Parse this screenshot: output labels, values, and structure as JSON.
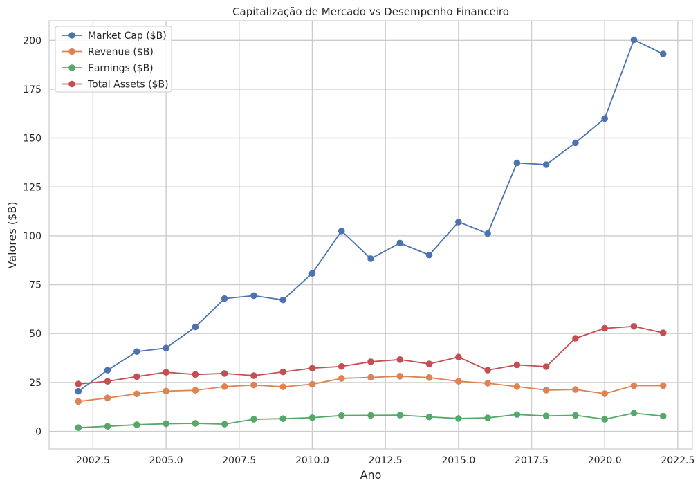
{
  "chart_data": {
    "type": "line",
    "title": "Capitalização de Mercado vs Desempenho Financeiro",
    "xlabel": "Ano",
    "ylabel": "Valores ($B)",
    "xlim": [
      2001.0,
      2023.0
    ],
    "ylim": [
      -9,
      210
    ],
    "x_ticks": [
      2002.5,
      2005.0,
      2007.5,
      2010.0,
      2012.5,
      2015.0,
      2017.5,
      2020.0,
      2022.5
    ],
    "x_tick_labels": [
      "2002.5",
      "2005.0",
      "2007.5",
      "2010.0",
      "2012.5",
      "2015.0",
      "2017.5",
      "2020.0",
      "2022.5"
    ],
    "y_ticks": [
      0,
      25,
      50,
      75,
      100,
      125,
      150,
      175,
      200
    ],
    "y_tick_labels": [
      "0",
      "25",
      "50",
      "75",
      "100",
      "125",
      "150",
      "175",
      "200"
    ],
    "grid": true,
    "legend_position": "top-left",
    "x": [
      2002,
      2003,
      2004,
      2005,
      2006,
      2007,
      2008,
      2009,
      2010,
      2011,
      2012,
      2013,
      2014,
      2015,
      2016,
      2017,
      2018,
      2019,
      2020,
      2021,
      2022
    ],
    "series": [
      {
        "name": "Market Cap ($B)",
        "color": "#4c72b0",
        "values": [
          20.5,
          31.3,
          40.8,
          42.6,
          53.4,
          67.9,
          69.4,
          67.2,
          80.8,
          102.5,
          88.3,
          96.3,
          90.2,
          107.1,
          101.2,
          137.3,
          136.4,
          147.6,
          160.0,
          200.3,
          193.0
        ]
      },
      {
        "name": "Revenue ($B)",
        "color": "#dd8452",
        "values": [
          15.3,
          17.1,
          19.2,
          20.6,
          21.0,
          22.9,
          23.7,
          22.8,
          24.1,
          27.1,
          27.6,
          28.2,
          27.5,
          25.6,
          24.6,
          22.9,
          21.1,
          21.4,
          19.3,
          23.4,
          23.4
        ]
      },
      {
        "name": "Earnings ($B)",
        "color": "#55a868",
        "values": [
          1.9,
          2.6,
          3.4,
          3.9,
          4.1,
          3.7,
          6.2,
          6.5,
          7.0,
          8.1,
          8.2,
          8.3,
          7.4,
          6.6,
          6.9,
          8.6,
          7.9,
          8.2,
          6.2,
          9.3,
          7.8
        ]
      },
      {
        "name": "Total Assets ($B)",
        "color": "#c44e52",
        "values": [
          24.2,
          25.6,
          28.0,
          30.2,
          29.1,
          29.6,
          28.5,
          30.4,
          32.3,
          33.2,
          35.6,
          36.7,
          34.5,
          38.0,
          31.3,
          34.0,
          33.1,
          47.6,
          52.7,
          53.7,
          50.4
        ]
      }
    ]
  }
}
